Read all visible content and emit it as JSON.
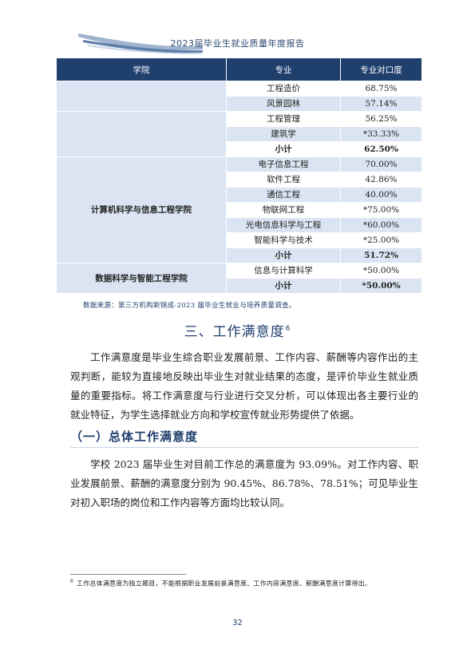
{
  "header": {
    "title": "2023届毕业生就业质量年度报告"
  },
  "table": {
    "headers": [
      "学院",
      "专业",
      "专业对口度"
    ],
    "groups": [
      {
        "college": "",
        "rows": [
          {
            "major": "工程造价",
            "value": "68.75%"
          },
          {
            "major": "风景园林",
            "value": "57.14%"
          }
        ]
      },
      {
        "college": "",
        "rows": [
          {
            "major": "工程管理",
            "value": "56.25%"
          },
          {
            "major": "建筑学",
            "value": "*33.33%"
          },
          {
            "major": "小计",
            "value": "62.50%"
          }
        ]
      },
      {
        "college": "计算机科学与信息工程学院",
        "rows": [
          {
            "major": "电子信息工程",
            "value": "70.00%"
          },
          {
            "major": "软件工程",
            "value": "42.86%"
          },
          {
            "major": "通信工程",
            "value": "40.00%"
          },
          {
            "major": "物联网工程",
            "value": "*75.00%"
          },
          {
            "major": "光电信息科学与工程",
            "value": "*60.00%"
          },
          {
            "major": "智能科学与技术",
            "value": "*25.00%"
          },
          {
            "major": "小计",
            "value": "51.72%"
          }
        ]
      },
      {
        "college": "数据科学与智能工程学院",
        "rows": [
          {
            "major": "信息与计算科学",
            "value": "*50.00%"
          },
          {
            "major": "小计",
            "value": "*50.00%"
          }
        ]
      }
    ]
  },
  "source_note": "数据来源：第三方机构新锦成-2023 届毕业生就业与培养质量调查。",
  "section": {
    "title": "三、工作满意度",
    "footnote_mark": "6",
    "paragraph": "工作满意度是毕业生综合职业发展前景、工作内容、薪酬等内容作出的主观判断，能较为直接地反映出毕业生对就业结果的态度，是评价毕业生就业质量的重要指标。将工作满意度与行业进行交叉分析，可以体现出各主要行业的就业特征，为学生选择就业方向和学校宣传就业形势提供了依据。"
  },
  "subsection": {
    "title": "（一）总体工作满意度",
    "paragraph": "学校 2023 届毕业生对目前工作总的满意度为 93.09%。对工作内容、职业发展前景、薪酬的满意度分别为 90.45%、86.78%、78.51%；可见毕业生对初入职场的岗位和工作内容等方面均比较认同。"
  },
  "footnote": {
    "mark": "6",
    "text": "工作总体满意度为独立题目，不能根据职业发展前景满意度、工作内容满意度、薪酬满意度计算得出。"
  },
  "page_number": "32",
  "colors": {
    "header_bg": "#1f3f6d",
    "shade": "#dbe4f2",
    "accent": "#1f3f6d"
  }
}
